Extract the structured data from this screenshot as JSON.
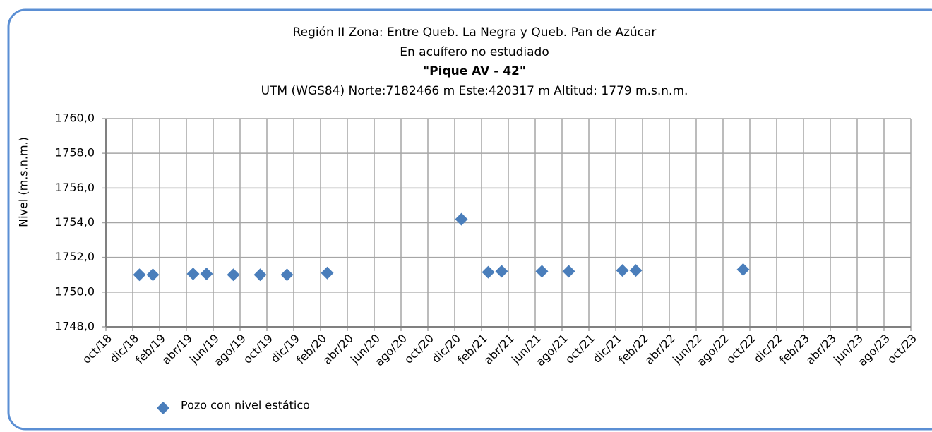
{
  "chart_data": {
    "type": "scatter",
    "title": "Región II  Zona: Entre Queb. La Negra y Queb. Pan de Azúcar",
    "subtitle": "En acuífero no estudiado",
    "well_name": "\"Pique AV - 42\"",
    "location": "UTM (WGS84) Norte:7182466 m   Este:420317 m Altitud: 1779 m.s.n.m.",
    "y_label": "Nivel (m.s.n.m.)",
    "xlim": [
      "2018-10",
      "2023-10"
    ],
    "xticks": [
      {
        "value": "2018-10",
        "label": "oct/18"
      },
      {
        "value": "2018-12",
        "label": "dic/18"
      },
      {
        "value": "2019-02",
        "label": "feb/19"
      },
      {
        "value": "2019-04",
        "label": "abr/19"
      },
      {
        "value": "2019-06",
        "label": "jun/19"
      },
      {
        "value": "2019-08",
        "label": "ago/19"
      },
      {
        "value": "2019-10",
        "label": "oct/19"
      },
      {
        "value": "2019-12",
        "label": "dic/19"
      },
      {
        "value": "2020-02",
        "label": "feb/20"
      },
      {
        "value": "2020-04",
        "label": "abr/20"
      },
      {
        "value": "2020-06",
        "label": "jun/20"
      },
      {
        "value": "2020-08",
        "label": "ago/20"
      },
      {
        "value": "2020-10",
        "label": "oct/20"
      },
      {
        "value": "2020-12",
        "label": "dic/20"
      },
      {
        "value": "2021-02",
        "label": "feb/21"
      },
      {
        "value": "2021-04",
        "label": "abr/21"
      },
      {
        "value": "2021-06",
        "label": "jun/21"
      },
      {
        "value": "2021-08",
        "label": "ago/21"
      },
      {
        "value": "2021-10",
        "label": "oct/21"
      },
      {
        "value": "2021-12",
        "label": "dic/21"
      },
      {
        "value": "2022-02",
        "label": "feb/22"
      },
      {
        "value": "2022-04",
        "label": "abr/22"
      },
      {
        "value": "2022-06",
        "label": "jun/22"
      },
      {
        "value": "2022-08",
        "label": "ago/22"
      },
      {
        "value": "2022-10",
        "label": "oct/22"
      },
      {
        "value": "2022-12",
        "label": "dic/22"
      },
      {
        "value": "2023-02",
        "label": "feb/23"
      },
      {
        "value": "2023-04",
        "label": "abr/23"
      },
      {
        "value": "2023-06",
        "label": "jun/23"
      },
      {
        "value": "2023-08",
        "label": "ago/23"
      },
      {
        "value": "2023-10",
        "label": "oct/23"
      }
    ],
    "ylim": [
      1748,
      1760
    ],
    "yticks": [
      {
        "value": 1748,
        "label": "1748,0"
      },
      {
        "value": 1750,
        "label": "1750,0"
      },
      {
        "value": 1752,
        "label": "1752,0"
      },
      {
        "value": 1754,
        "label": "1754,0"
      },
      {
        "value": 1756,
        "label": "1756,0"
      },
      {
        "value": 1758,
        "label": "1758,0"
      },
      {
        "value": 1760,
        "label": "1760,0"
      }
    ],
    "grid": true,
    "x": [
      "2018-12",
      "2019-01",
      "2019-04",
      "2019-05",
      "2019-07",
      "2019-09",
      "2019-11",
      "2020-02",
      "2020-12",
      "2021-02",
      "2021-03",
      "2021-06",
      "2021-08",
      "2021-12",
      "2022-01",
      "2022-09"
    ],
    "series": [
      {
        "name": "Pozo con nivel estático",
        "color": "#4a7ebb",
        "values": [
          1751.0,
          1751.0,
          1751.05,
          1751.05,
          1751.0,
          1751.0,
          1751.0,
          1751.1,
          1754.2,
          1751.15,
          1751.2,
          1751.2,
          1751.2,
          1751.25,
          1751.25,
          1751.3
        ]
      }
    ],
    "legend": "bottom-left"
  }
}
